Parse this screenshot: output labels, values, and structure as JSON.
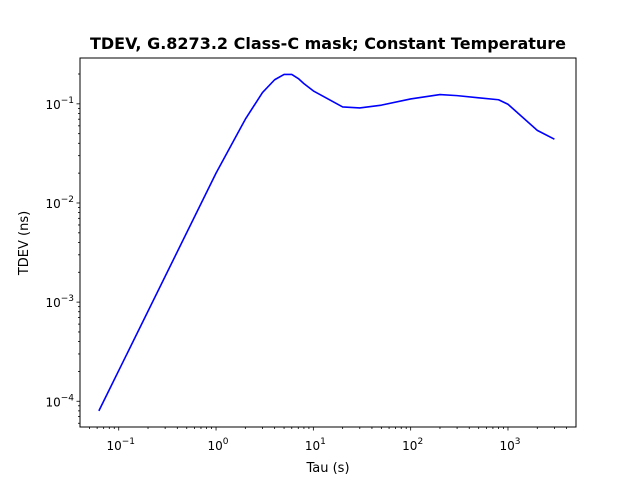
{
  "chart_data": {
    "type": "line",
    "title": "TDEV, G.8273.2 Class-C mask; Constant Temperature",
    "xlabel": "Tau (s)",
    "ylabel": "TDEV (ns)",
    "xscale": "log",
    "yscale": "log",
    "xlim": [
      0.04,
      5000
    ],
    "ylim": [
      5.5e-05,
      0.29
    ],
    "grid": false,
    "legend": "none",
    "x_ticks": [
      {
        "value": 0.1,
        "base": "10",
        "exp": "−1"
      },
      {
        "value": 1,
        "base": "10",
        "exp": "0"
      },
      {
        "value": 10,
        "base": "10",
        "exp": "1"
      },
      {
        "value": 100,
        "base": "10",
        "exp": "2"
      },
      {
        "value": 1000,
        "base": "10",
        "exp": "3"
      }
    ],
    "y_ticks": [
      {
        "value": 0.0001,
        "base": "10",
        "exp": "−4"
      },
      {
        "value": 0.001,
        "base": "10",
        "exp": "−3"
      },
      {
        "value": 0.01,
        "base": "10",
        "exp": "−2"
      },
      {
        "value": 0.1,
        "base": "10",
        "exp": "−1"
      }
    ],
    "series": [
      {
        "color": "#0000ff",
        "x": [
          0.0625,
          1,
          2,
          3,
          4,
          5,
          6,
          7,
          8,
          10,
          20,
          30,
          50,
          100,
          200,
          300,
          500,
          800,
          1000,
          2000,
          3000
        ],
        "y": [
          8e-05,
          0.02,
          0.07,
          0.13,
          0.175,
          0.198,
          0.198,
          0.18,
          0.16,
          0.135,
          0.093,
          0.091,
          0.097,
          0.112,
          0.124,
          0.121,
          0.115,
          0.11,
          0.099,
          0.054,
          0.044
        ]
      }
    ]
  }
}
